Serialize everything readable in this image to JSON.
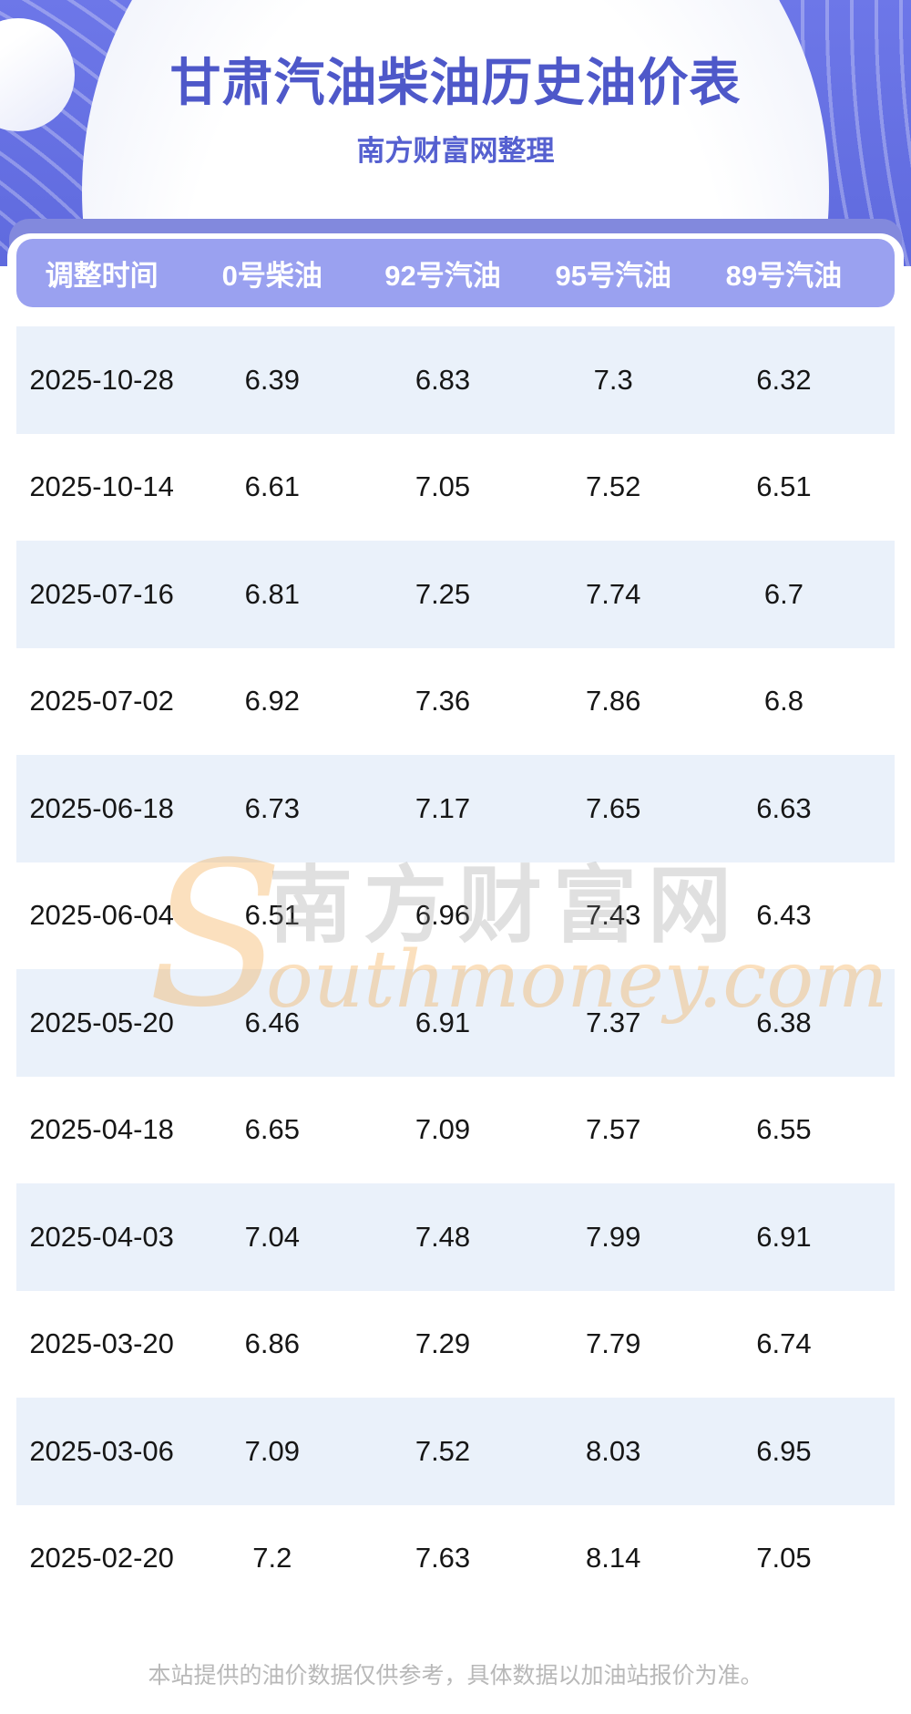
{
  "header": {
    "title": "甘肃汽油柴油历史油价表",
    "subtitle": "南方财富网整理"
  },
  "table": {
    "columns": [
      "调整时间",
      "0号柴油",
      "92号汽油",
      "95号汽油",
      "89号汽油"
    ],
    "rows": [
      [
        "2025-10-28",
        "6.39",
        "6.83",
        "7.3",
        "6.32"
      ],
      [
        "2025-10-14",
        "6.61",
        "7.05",
        "7.52",
        "6.51"
      ],
      [
        "2025-07-16",
        "6.81",
        "7.25",
        "7.74",
        "6.7"
      ],
      [
        "2025-07-02",
        "6.92",
        "7.36",
        "7.86",
        "6.8"
      ],
      [
        "2025-06-18",
        "6.73",
        "7.17",
        "7.65",
        "6.63"
      ],
      [
        "2025-06-04",
        "6.51",
        "6.96",
        "7.43",
        "6.43"
      ],
      [
        "2025-05-20",
        "6.46",
        "6.91",
        "7.37",
        "6.38"
      ],
      [
        "2025-04-18",
        "6.65",
        "7.09",
        "7.57",
        "6.55"
      ],
      [
        "2025-04-03",
        "7.04",
        "7.48",
        "7.99",
        "6.91"
      ],
      [
        "2025-03-20",
        "6.86",
        "7.29",
        "7.79",
        "6.74"
      ],
      [
        "2025-03-06",
        "7.09",
        "7.52",
        "8.03",
        "6.95"
      ],
      [
        "2025-02-20",
        "7.2",
        "7.63",
        "8.14",
        "7.05"
      ]
    ]
  },
  "chart_data": {
    "type": "table",
    "title": "甘肃汽油柴油历史油价表",
    "subtitle": "南方财富网整理",
    "categories": [
      "2025-10-28",
      "2025-10-14",
      "2025-07-16",
      "2025-07-02",
      "2025-06-18",
      "2025-06-04",
      "2025-05-20",
      "2025-04-18",
      "2025-04-03",
      "2025-03-20",
      "2025-03-06",
      "2025-02-20"
    ],
    "series": [
      {
        "name": "0号柴油",
        "values": [
          6.39,
          6.61,
          6.81,
          6.92,
          6.73,
          6.51,
          6.46,
          6.65,
          7.04,
          6.86,
          7.09,
          7.2
        ]
      },
      {
        "name": "92号汽油",
        "values": [
          6.83,
          7.05,
          7.25,
          7.36,
          7.17,
          6.96,
          6.91,
          7.09,
          7.48,
          7.29,
          7.52,
          7.63
        ]
      },
      {
        "name": "95号汽油",
        "values": [
          7.3,
          7.52,
          7.74,
          7.86,
          7.65,
          7.43,
          7.37,
          7.57,
          7.99,
          7.79,
          8.03,
          8.14
        ]
      },
      {
        "name": "89号汽油",
        "values": [
          6.32,
          6.51,
          6.7,
          6.8,
          6.63,
          6.43,
          6.38,
          6.55,
          6.91,
          6.74,
          6.95,
          7.05
        ]
      }
    ],
    "xlabel": "调整时间",
    "ylabel": ""
  },
  "watermark": {
    "initial": "S",
    "cn": "南方财富网",
    "en": "outhmoney.com"
  },
  "footer": {
    "disclaimer": "本站提供的油价数据仅供参考，具体数据以加油站报价为准。"
  },
  "colors": {
    "hero_background": "#6d77e8",
    "title_text": "#4e58c9",
    "subtitle_text": "#5560d0",
    "header_back_bar": "#8289dd",
    "header_bar": "#9aa1f0",
    "header_text": "#ffffff",
    "row_alt_background": "#eaf1fa",
    "row_text": "#161616",
    "watermark_orange": "#f3a646",
    "footer_text": "#b8b8b8"
  }
}
